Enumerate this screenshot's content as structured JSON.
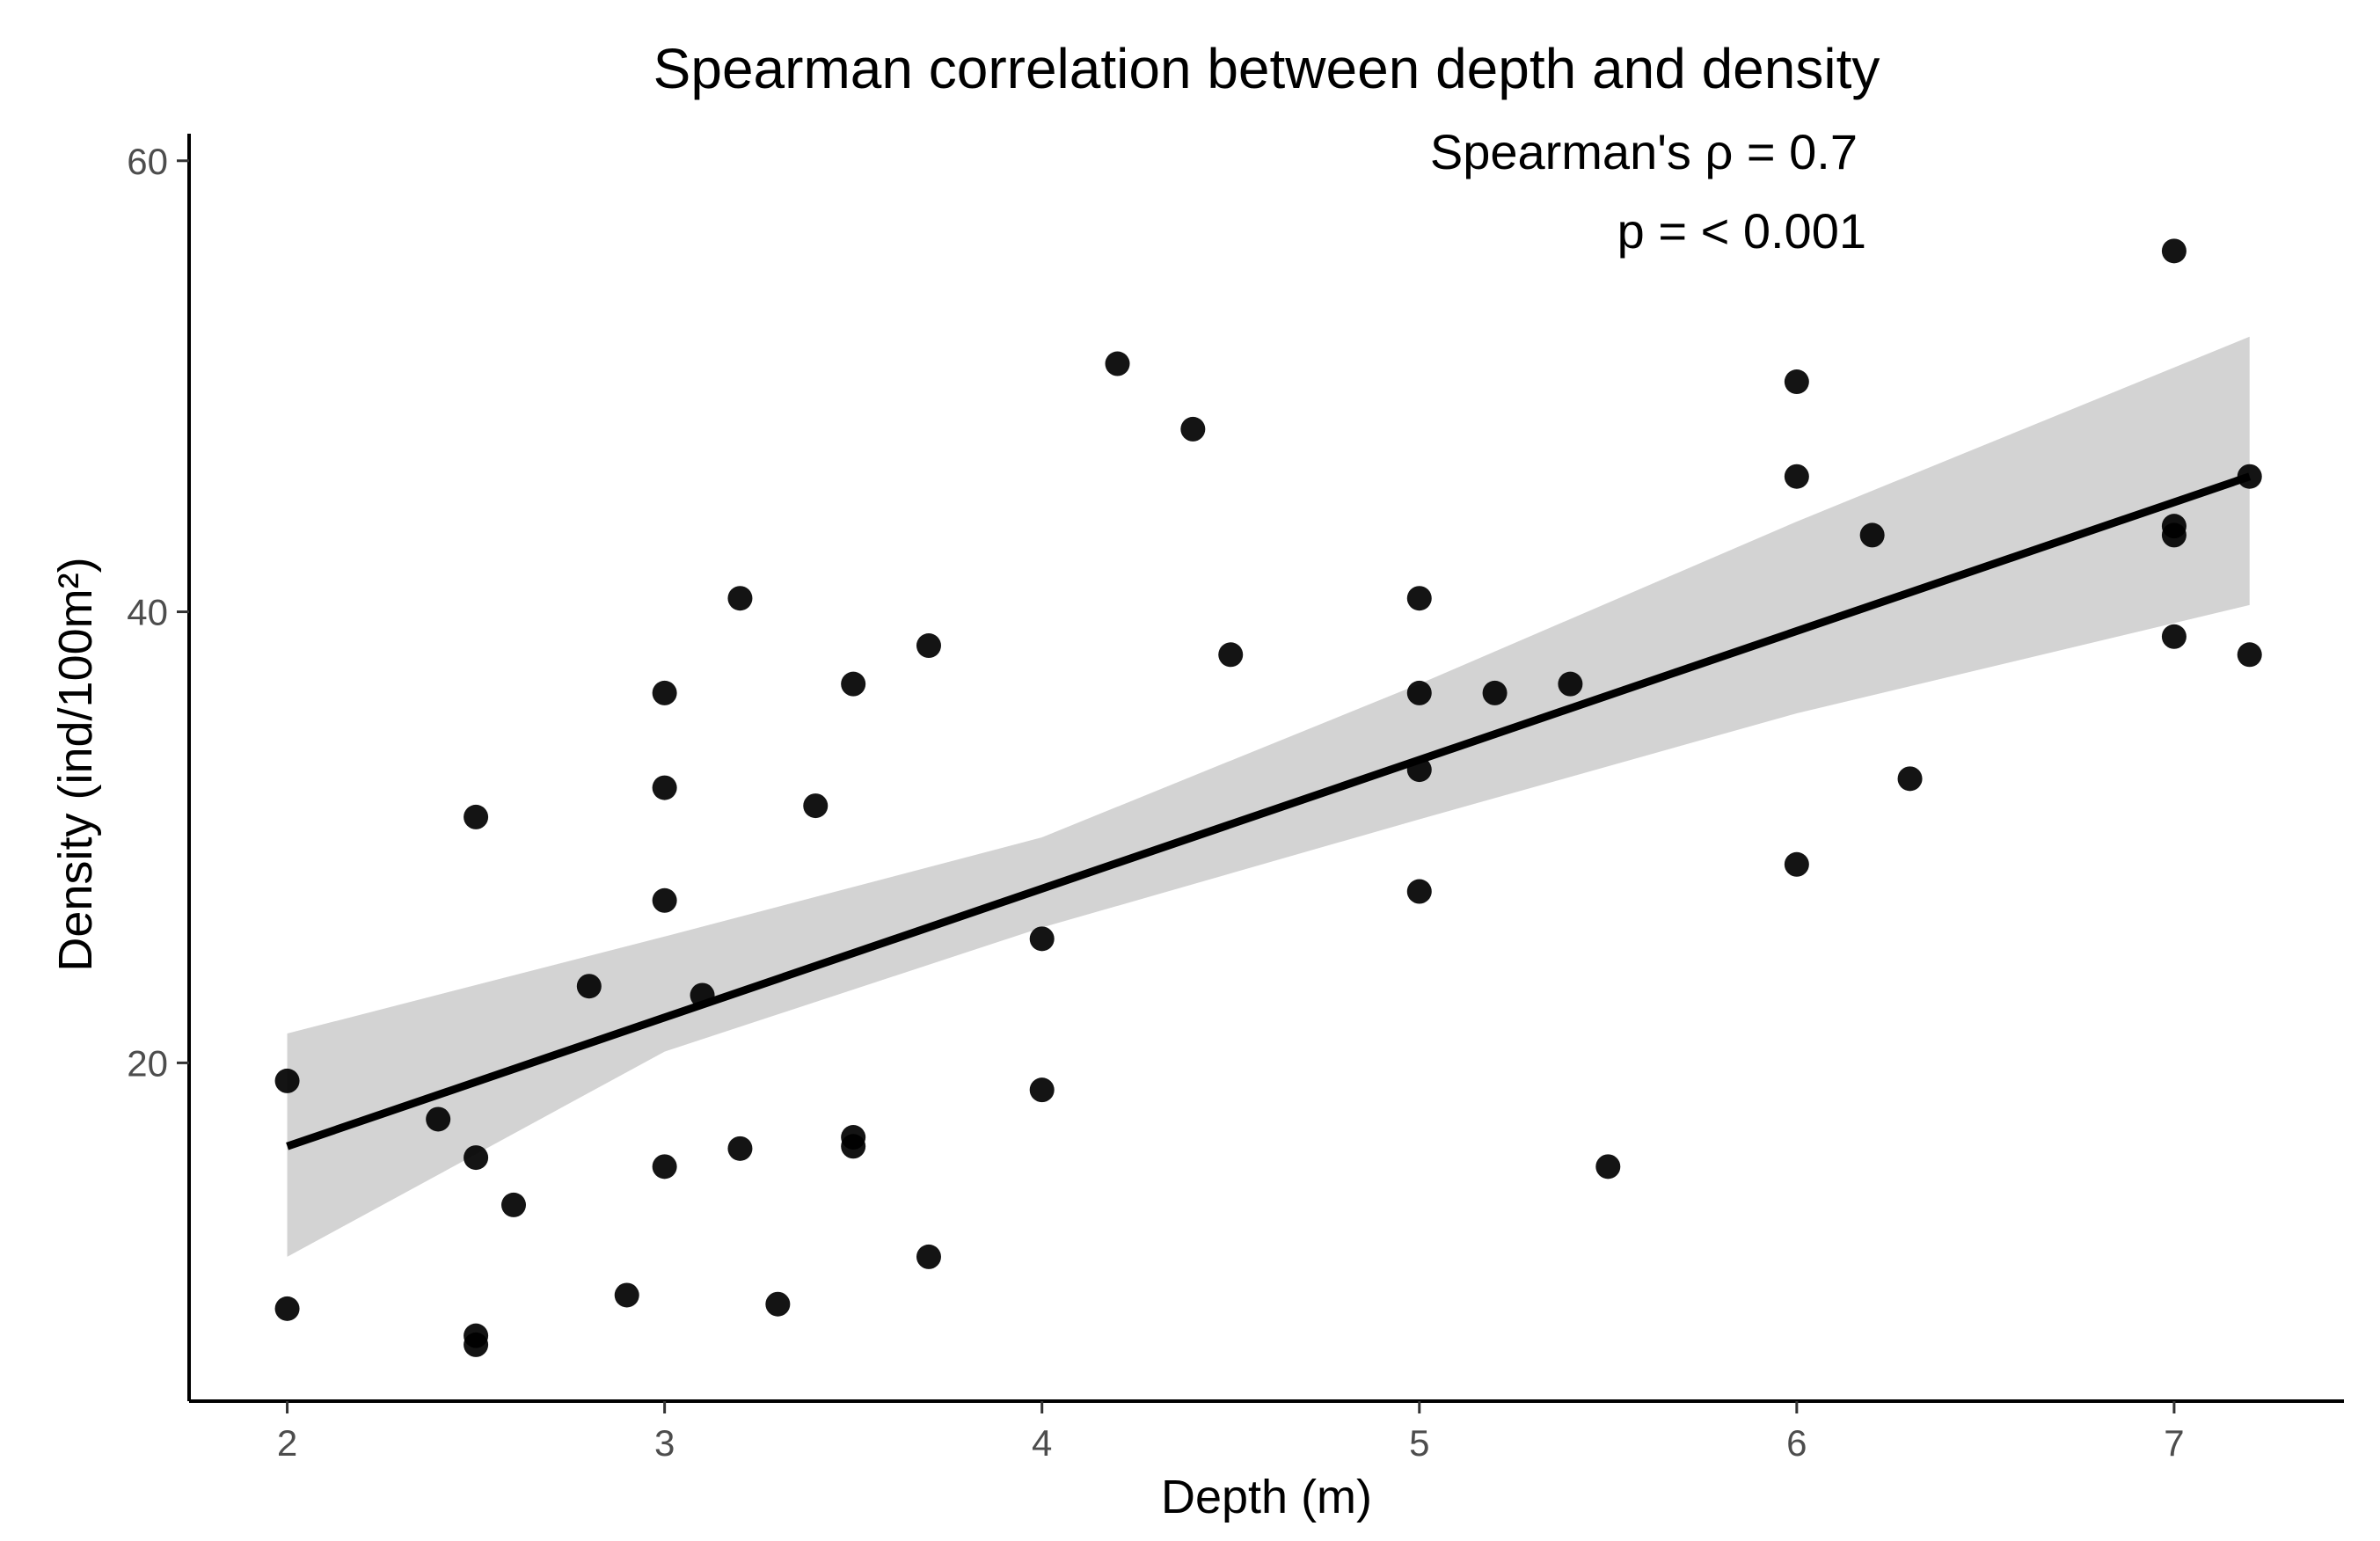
{
  "chart_data": {
    "type": "scatter",
    "title": "Spearman correlation between depth and density",
    "xlabel": "Depth (m)",
    "ylabel": "Density (ind/100m²)",
    "xlim": [
      1.74,
      7.45
    ],
    "ylim": [
      5,
      61.2
    ],
    "xticks": [
      2,
      3,
      4,
      5,
      6,
      7
    ],
    "yticks": [
      20,
      40,
      60
    ],
    "grid": false,
    "colors": {
      "point": "#000000",
      "line": "#000000",
      "band": "#d3d3d3",
      "axis": "#000000",
      "tick_text": "#4d4d4d"
    },
    "annotations": [
      {
        "text": "Spearman's ρ = 0.7"
      },
      {
        "text": "p = < 0.001"
      }
    ],
    "series": [
      {
        "name": "observations",
        "kind": "points",
        "x": [
          2,
          2,
          2.4,
          2.5,
          2.5,
          2.5,
          2.5,
          2.6,
          2.8,
          2.9,
          3,
          3,
          3,
          3,
          3.1,
          3.2,
          3.2,
          3.3,
          3.4,
          3.5,
          3.5,
          3.5,
          3.7,
          3.7,
          4,
          4,
          4.2,
          4.4,
          4.5,
          5,
          5,
          5,
          5,
          5.2,
          5.4,
          5.5,
          6,
          6,
          6,
          6.2,
          6.3,
          7,
          7,
          7,
          7,
          7.2,
          7.2
        ],
        "y": [
          19.2,
          9.1,
          17.5,
          30.9,
          15.8,
          7.9,
          7.5,
          13.7,
          23.4,
          9.7,
          36.4,
          32.2,
          27.2,
          15.4,
          23.0,
          40.6,
          16.2,
          9.3,
          31.4,
          36.8,
          16.7,
          16.3,
          38.5,
          11.4,
          25.5,
          18.8,
          51.0,
          48.1,
          38.1,
          40.6,
          36.4,
          33.0,
          27.6,
          36.4,
          36.8,
          15.4,
          50.2,
          46.0,
          28.8,
          43.4,
          32.6,
          56.0,
          43.8,
          43.4,
          38.9,
          46.0,
          38.1
        ]
      },
      {
        "name": "linear fit",
        "kind": "line",
        "x": [
          2,
          7.2
        ],
        "y": [
          16.3,
          46.0
        ]
      },
      {
        "name": "95% confidence band",
        "kind": "band",
        "x": [
          2,
          3,
          4,
          5,
          6,
          7.2
        ],
        "lower": [
          11.4,
          20.5,
          26.0,
          30.8,
          35.5,
          40.3
        ],
        "upper": [
          21.3,
          25.6,
          30.0,
          36.8,
          44.0,
          52.2
        ]
      }
    ]
  }
}
